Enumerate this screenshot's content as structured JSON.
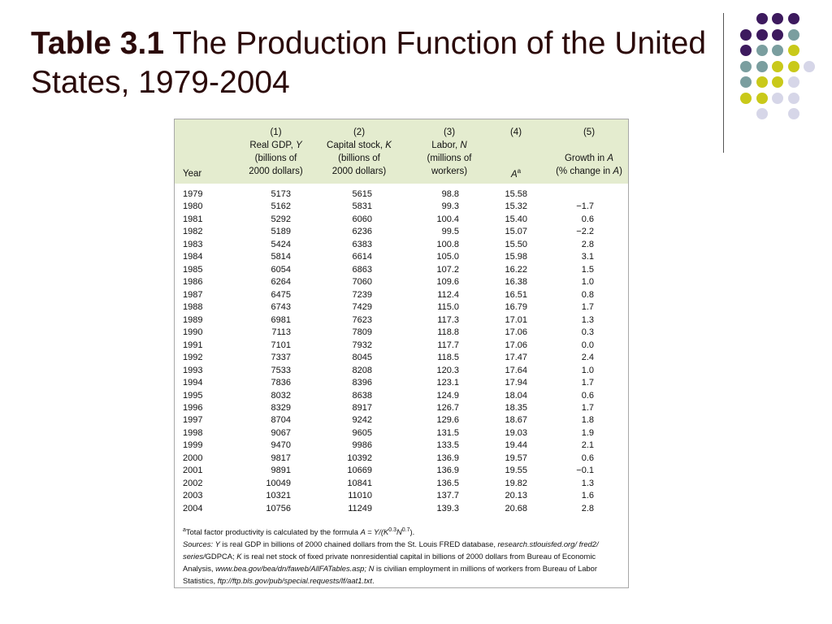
{
  "slide": {
    "title_bold": "Table 3.1",
    "title_rest": " The Production Function of the United States, 1979-2004"
  },
  "colors": {
    "purple": "#3d1a5e",
    "teal": "#7a9e9f",
    "olive": "#c9c91a",
    "lavender": "#d6d6e8",
    "header_band": "#e4eccf"
  },
  "table": {
    "columns": {
      "year": "Year",
      "gdp": [
        "(1)",
        "Real GDP, Y",
        "(billions of",
        "2000 dollars)"
      ],
      "capital": [
        "(2)",
        "Capital stock, K",
        "(billions of",
        "2000 dollars)"
      ],
      "labor": [
        "(3)",
        "Labor, N",
        "(millions of",
        "workers)"
      ],
      "tfp": [
        "(4)",
        "A",
        "a"
      ],
      "growth": [
        "(5)",
        "Growth in A",
        "(% change in A)"
      ]
    },
    "rows": [
      {
        "year": "1979",
        "gdp": "5173",
        "capital": "5615",
        "labor": "98.8",
        "tfp": "15.58",
        "growth": ""
      },
      {
        "year": "1980",
        "gdp": "5162",
        "capital": "5831",
        "labor": "99.3",
        "tfp": "15.32",
        "growth": "−1.7"
      },
      {
        "year": "1981",
        "gdp": "5292",
        "capital": "6060",
        "labor": "100.4",
        "tfp": "15.40",
        "growth": "0.6"
      },
      {
        "year": "1982",
        "gdp": "5189",
        "capital": "6236",
        "labor": "99.5",
        "tfp": "15.07",
        "growth": "−2.2"
      },
      {
        "year": "1983",
        "gdp": "5424",
        "capital": "6383",
        "labor": "100.8",
        "tfp": "15.50",
        "growth": "2.8"
      },
      {
        "year": "1984",
        "gdp": "5814",
        "capital": "6614",
        "labor": "105.0",
        "tfp": "15.98",
        "growth": "3.1"
      },
      {
        "year": "1985",
        "gdp": "6054",
        "capital": "6863",
        "labor": "107.2",
        "tfp": "16.22",
        "growth": "1.5"
      },
      {
        "year": "1986",
        "gdp": "6264",
        "capital": "7060",
        "labor": "109.6",
        "tfp": "16.38",
        "growth": "1.0"
      },
      {
        "year": "1987",
        "gdp": "6475",
        "capital": "7239",
        "labor": "112.4",
        "tfp": "16.51",
        "growth": "0.8"
      },
      {
        "year": "1988",
        "gdp": "6743",
        "capital": "7429",
        "labor": "115.0",
        "tfp": "16.79",
        "growth": "1.7"
      },
      {
        "year": "1989",
        "gdp": "6981",
        "capital": "7623",
        "labor": "117.3",
        "tfp": "17.01",
        "growth": "1.3"
      },
      {
        "year": "1990",
        "gdp": "7113",
        "capital": "7809",
        "labor": "118.8",
        "tfp": "17.06",
        "growth": "0.3"
      },
      {
        "year": "1991",
        "gdp": "7101",
        "capital": "7932",
        "labor": "117.7",
        "tfp": "17.06",
        "growth": "0.0"
      },
      {
        "year": "1992",
        "gdp": "7337",
        "capital": "8045",
        "labor": "118.5",
        "tfp": "17.47",
        "growth": "2.4"
      },
      {
        "year": "1993",
        "gdp": "7533",
        "capital": "8208",
        "labor": "120.3",
        "tfp": "17.64",
        "growth": "1.0"
      },
      {
        "year": "1994",
        "gdp": "7836",
        "capital": "8396",
        "labor": "123.1",
        "tfp": "17.94",
        "growth": "1.7"
      },
      {
        "year": "1995",
        "gdp": "8032",
        "capital": "8638",
        "labor": "124.9",
        "tfp": "18.04",
        "growth": "0.6"
      },
      {
        "year": "1996",
        "gdp": "8329",
        "capital": "8917",
        "labor": "126.7",
        "tfp": "18.35",
        "growth": "1.7"
      },
      {
        "year": "1997",
        "gdp": "8704",
        "capital": "9242",
        "labor": "129.6",
        "tfp": "18.67",
        "growth": "1.8"
      },
      {
        "year": "1998",
        "gdp": "9067",
        "capital": "9605",
        "labor": "131.5",
        "tfp": "19.03",
        "growth": "1.9"
      },
      {
        "year": "1999",
        "gdp": "9470",
        "capital": "9986",
        "labor": "133.5",
        "tfp": "19.44",
        "growth": "2.1"
      },
      {
        "year": "2000",
        "gdp": "9817",
        "capital": "10392",
        "labor": "136.9",
        "tfp": "19.57",
        "growth": "0.6"
      },
      {
        "year": "2001",
        "gdp": "9891",
        "capital": "10669",
        "labor": "136.9",
        "tfp": "19.55",
        "growth": "−0.1"
      },
      {
        "year": "2002",
        "gdp": "10049",
        "capital": "10841",
        "labor": "136.5",
        "tfp": "19.82",
        "growth": "1.3"
      },
      {
        "year": "2003",
        "gdp": "10321",
        "capital": "11010",
        "labor": "137.7",
        "tfp": "20.13",
        "growth": "1.6"
      },
      {
        "year": "2004",
        "gdp": "10756",
        "capital": "11249",
        "labor": "139.3",
        "tfp": "20.68",
        "growth": "2.8"
      }
    ],
    "notes": {
      "footnote_mark": "a",
      "footnote_text": "Total factor productivity is calculated by the formula",
      "formula": "A = Y/(K",
      "formula_exp1": "0.3",
      "formula_mid": "N",
      "formula_exp2": "0.7",
      "formula_end": ").",
      "sources_label": "Sources:",
      "sources_y": "Y",
      "sources_text1": " is real GDP in billions of 2000 chained dollars from the St. Louis FRED database, ",
      "sources_link1": "research.stlouisfed.org/ fred2/ series/",
      "sources_text2": "GDPCA; ",
      "sources_k": "K",
      "sources_text3": " is real net stock of fixed private nonresidential capital in billions of 2000 dollars from Bureau of Economic Analysis, ",
      "sources_link2": "www.bea.gov/bea/dn/faweb/AllFATables.asp;",
      "sources_n": " N",
      "sources_text4": " is civilian employment in millions of workers from Bureau of Labor Statistics, ",
      "sources_link3": "ftp://ftp.bls.gov/pub/special.requests/lf/aat1.txt",
      "sources_end": "."
    }
  }
}
